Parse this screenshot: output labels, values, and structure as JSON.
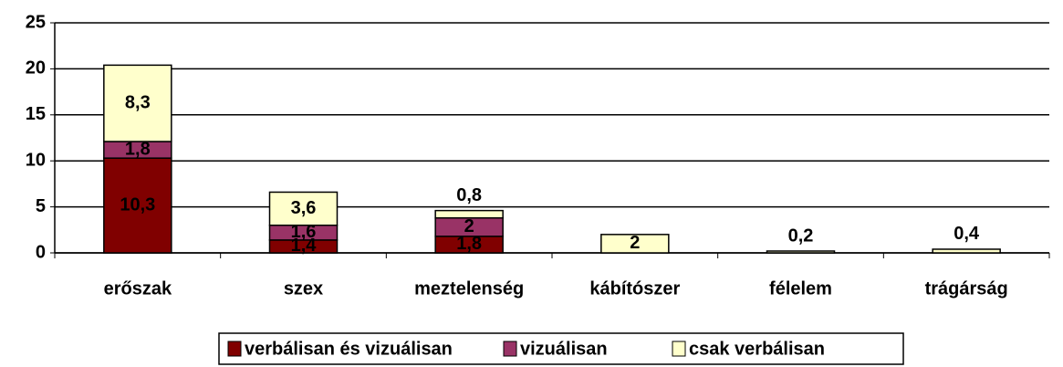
{
  "chart_data": {
    "type": "stacked_bar",
    "categories": [
      "erőszak",
      "szex",
      "meztelenség",
      "kábítószer",
      "félelem",
      "trágárság"
    ],
    "series": [
      {
        "name": "verbálisan és vizuálisan",
        "color": "#800000",
        "values": [
          10.3,
          1.4,
          1.8,
          null,
          null,
          null
        ],
        "value_labels": [
          "10,3",
          "1,4",
          "1,8",
          null,
          null,
          null
        ]
      },
      {
        "name": "vizuálisan",
        "color": "#993366",
        "values": [
          1.8,
          1.6,
          2,
          null,
          null,
          null
        ],
        "value_labels": [
          "1,8",
          "1,6",
          "2",
          null,
          null,
          null
        ]
      },
      {
        "name": "csak verbálisan",
        "color": "#ffffcc",
        "values": [
          8.3,
          3.6,
          0.8,
          2,
          0.2,
          0.4
        ],
        "value_labels": [
          "8,3",
          "3,6",
          "0,8",
          "2",
          "0,2",
          "0,4"
        ]
      }
    ],
    "ylim": [
      0,
      25
    ],
    "yticks": [
      0,
      5,
      10,
      15,
      20,
      25
    ],
    "grid": true
  }
}
